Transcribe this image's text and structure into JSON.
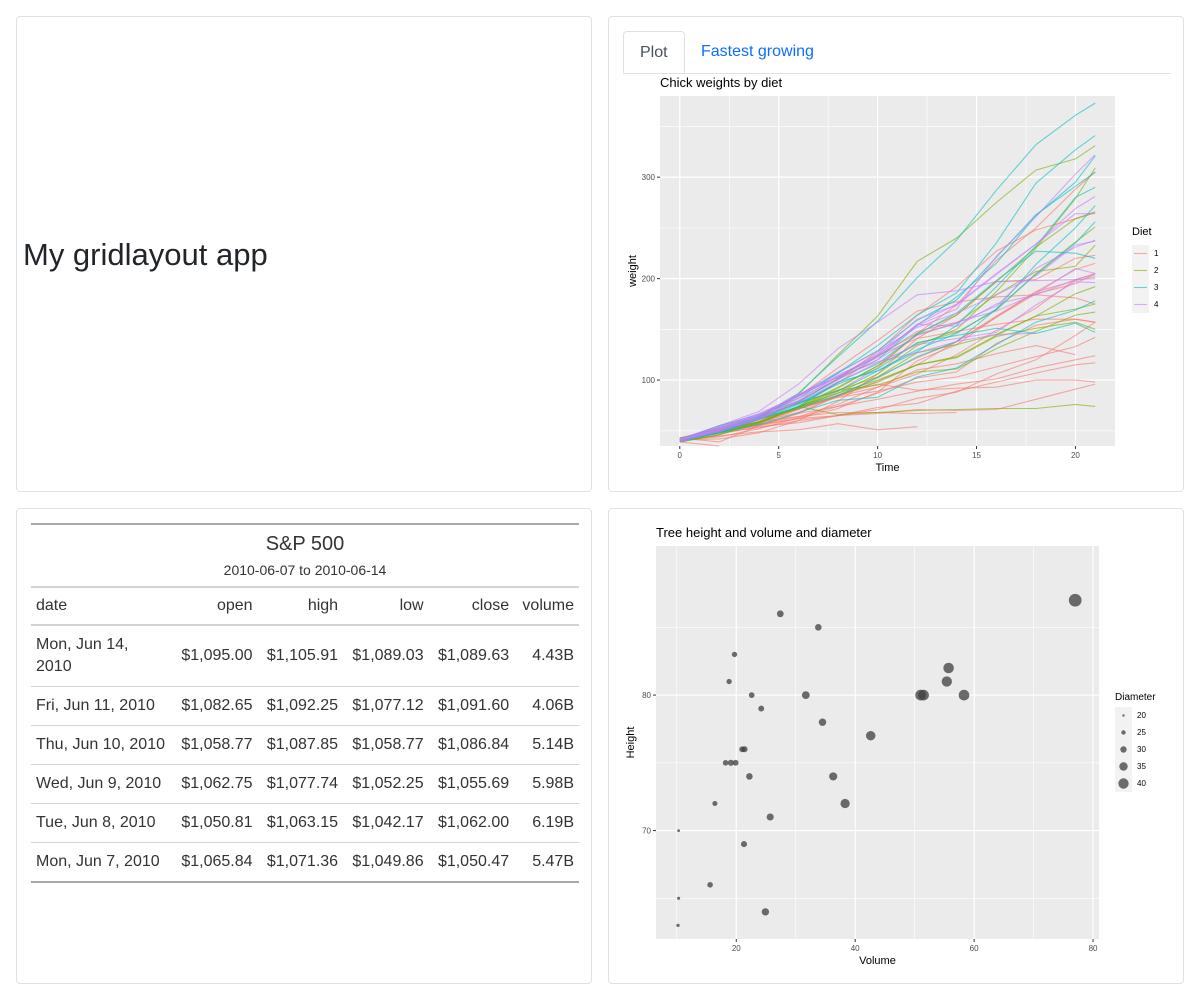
{
  "header": {
    "title": "My gridlayout app"
  },
  "tabs": [
    {
      "label": "Plot",
      "active": true
    },
    {
      "label": "Fastest growing",
      "active": false
    }
  ],
  "chart_data": [
    {
      "type": "line",
      "title": "Chick weights by diet",
      "xlabel": "Time",
      "ylabel": "weight",
      "xlim": [
        -1,
        22
      ],
      "ylim": [
        35,
        380
      ],
      "x_ticks": [
        0,
        5,
        10,
        15,
        20
      ],
      "y_ticks": [
        100,
        200,
        300
      ],
      "grid": true,
      "legend": {
        "title": "Diet",
        "position": "right",
        "entries": [
          "1",
          "2",
          "3",
          "4"
        ]
      },
      "colors": {
        "1": "#F8766D",
        "2": "#7CAE00",
        "3": "#00BFC4",
        "4": "#C77CFF"
      },
      "x": [
        0,
        2,
        4,
        6,
        8,
        10,
        12,
        14,
        16,
        18,
        20,
        21
      ],
      "series": [
        {
          "group": "1",
          "values": [
            42,
            51,
            59,
            64,
            76,
            93,
            106,
            125,
            149,
            171,
            199,
            205
          ]
        },
        {
          "group": "1",
          "values": [
            40,
            49,
            58,
            72,
            84,
            103,
            122,
            138,
            162,
            187,
            209,
            215
          ]
        },
        {
          "group": "1",
          "values": [
            43,
            39,
            55,
            67,
            84,
            99,
            115,
            138,
            163,
            187,
            198,
            202
          ]
        },
        {
          "group": "1",
          "values": [
            42,
            49,
            56,
            67,
            74,
            87,
            102,
            108,
            136,
            154,
            160,
            157
          ]
        },
        {
          "group": "1",
          "values": [
            41,
            42,
            48,
            60,
            79,
            106,
            141,
            164,
            197,
            199,
            220,
            223
          ]
        },
        {
          "group": "1",
          "values": [
            41,
            49,
            59,
            74,
            97,
            124,
            141,
            148,
            155,
            160,
            160,
            157
          ]
        },
        {
          "group": "1",
          "values": [
            41,
            49,
            57,
            71,
            89,
            112,
            146,
            174,
            218,
            250,
            288,
            305
          ]
        },
        {
          "group": "1",
          "values": [
            42,
            50,
            61,
            71,
            84,
            93,
            110,
            116,
            126,
            134,
            125,
            null
          ]
        },
        {
          "group": "1",
          "values": [
            42,
            51,
            59,
            68,
            85,
            96,
            90,
            92,
            93,
            100,
            100,
            98
          ]
        },
        {
          "group": "1",
          "values": [
            41,
            44,
            52,
            63,
            74,
            81,
            89,
            96,
            101,
            112,
            120,
            124
          ]
        },
        {
          "group": "1",
          "values": [
            43,
            51,
            63,
            84,
            112,
            139,
            168,
            177,
            182,
            184,
            181,
            175
          ]
        },
        {
          "group": "1",
          "values": [
            41,
            49,
            56,
            62,
            72,
            88,
            119,
            135,
            162,
            185,
            195,
            205
          ]
        },
        {
          "group": "1",
          "values": [
            41,
            48,
            53,
            60,
            65,
            67,
            71,
            70,
            71,
            81,
            91,
            96
          ]
        },
        {
          "group": "1",
          "values": [
            41,
            49,
            62,
            79,
            101,
            128,
            164,
            192,
            227,
            248,
            259,
            266
          ]
        },
        {
          "group": "1",
          "values": [
            41,
            49,
            56,
            64,
            68,
            68,
            67,
            68,
            null,
            null,
            null,
            null
          ]
        },
        {
          "group": "1",
          "values": [
            41,
            45,
            49,
            51,
            57,
            51,
            54,
            null,
            null,
            null,
            null,
            null
          ]
        },
        {
          "group": "1",
          "values": [
            42,
            51,
            61,
            72,
            83,
            89,
            98,
            103,
            113,
            123,
            133,
            142
          ]
        },
        {
          "group": "1",
          "values": [
            39,
            35,
            null,
            null,
            null,
            null,
            null,
            null,
            null,
            null,
            null,
            null
          ]
        },
        {
          "group": "1",
          "values": [
            43,
            48,
            55,
            62,
            65,
            71,
            82,
            88,
            106,
            120,
            144,
            157
          ]
        },
        {
          "group": "1",
          "values": [
            41,
            47,
            54,
            58,
            65,
            73,
            77,
            89,
            98,
            107,
            115,
            117
          ]
        },
        {
          "group": "2",
          "values": [
            40,
            50,
            62,
            86,
            125,
            163,
            217,
            240,
            275,
            307,
            318,
            331
          ]
        },
        {
          "group": "2",
          "values": [
            41,
            55,
            64,
            77,
            90,
            95,
            108,
            111,
            131,
            148,
            164,
            167
          ]
        },
        {
          "group": "2",
          "values": [
            43,
            52,
            61,
            73,
            90,
            103,
            127,
            135,
            145,
            163,
            170,
            175
          ]
        },
        {
          "group": "2",
          "values": [
            42,
            52,
            58,
            74,
            66,
            68,
            70,
            71,
            72,
            72,
            76,
            74
          ]
        },
        {
          "group": "2",
          "values": [
            40,
            49,
            62,
            78,
            102,
            124,
            146,
            164,
            197,
            231,
            259,
            265
          ]
        },
        {
          "group": "2",
          "values": [
            42,
            48,
            57,
            74,
            93,
            114,
            136,
            147,
            169,
            205,
            236,
            251
          ]
        },
        {
          "group": "2",
          "values": [
            39,
            46,
            58,
            73,
            87,
            100,
            115,
            123,
            144,
            163,
            185,
            192
          ]
        },
        {
          "group": "2",
          "values": [
            39,
            46,
            58,
            73,
            92,
            114,
            145,
            156,
            184,
            207,
            212,
            233
          ]
        },
        {
          "group": "2",
          "values": [
            39,
            48,
            59,
            74,
            87,
            106,
            134,
            150,
            187,
            230,
            279,
            309
          ]
        },
        {
          "group": "2",
          "values": [
            42,
            48,
            59,
            72,
            85,
            98,
            115,
            122,
            143,
            151,
            157,
            150
          ]
        },
        {
          "group": "3",
          "values": [
            42,
            53,
            62,
            73,
            85,
            102,
            123,
            138,
            170,
            204,
            235,
            256
          ]
        },
        {
          "group": "3",
          "values": [
            41,
            49,
            65,
            82,
            107,
            129,
            159,
            179,
            221,
            263,
            291,
            305
          ]
        },
        {
          "group": "3",
          "values": [
            39,
            50,
            63,
            77,
            96,
            111,
            137,
            144,
            151,
            146,
            156,
            147
          ]
        },
        {
          "group": "3",
          "values": [
            41,
            49,
            63,
            85,
            107,
            134,
            164,
            186,
            235,
            294,
            327,
            341
          ]
        },
        {
          "group": "3",
          "values": [
            41,
            53,
            64,
            87,
            123,
            158,
            201,
            238,
            287,
            332,
            361,
            373
          ]
        },
        {
          "group": "3",
          "values": [
            39,
            48,
            61,
            76,
            98,
            116,
            145,
            166,
            198,
            227,
            225,
            220
          ]
        },
        {
          "group": "3",
          "values": [
            41,
            48,
            56,
            68,
            80,
            83,
            103,
            112,
            135,
            157,
            169,
            178
          ]
        },
        {
          "group": "3",
          "values": [
            41,
            49,
            61,
            74,
            98,
            109,
            128,
            154,
            192,
            232,
            280,
            290
          ]
        },
        {
          "group": "3",
          "values": [
            42,
            50,
            61,
            78,
            89,
            109,
            130,
            146,
            170,
            214,
            250,
            272
          ]
        },
        {
          "group": "3",
          "values": [
            41,
            55,
            66,
            79,
            101,
            120,
            154,
            182,
            215,
            262,
            295,
            321
          ]
        },
        {
          "group": "4",
          "values": [
            42,
            51,
            66,
            85,
            103,
            124,
            155,
            153,
            175,
            184,
            199,
            204
          ]
        },
        {
          "group": "4",
          "values": [
            42,
            49,
            63,
            84,
            103,
            126,
            160,
            174,
            204,
            234,
            269,
            281
          ]
        },
        {
          "group": "4",
          "values": [
            42,
            55,
            69,
            96,
            131,
            157,
            184,
            188,
            197,
            198,
            199,
            200
          ]
        },
        {
          "group": "4",
          "values": [
            42,
            51,
            65,
            86,
            103,
            118,
            127,
            138,
            145,
            146,
            null,
            null
          ]
        },
        {
          "group": "4",
          "values": [
            41,
            50,
            61,
            78,
            98,
            117,
            135,
            141,
            147,
            174,
            197,
            196
          ]
        },
        {
          "group": "4",
          "values": [
            40,
            52,
            62,
            82,
            101,
            120,
            144,
            156,
            173,
            210,
            231,
            238
          ]
        },
        {
          "group": "4",
          "values": [
            41,
            53,
            66,
            79,
            100,
            123,
            148,
            157,
            168,
            185,
            210,
            205
          ]
        },
        {
          "group": "4",
          "values": [
            39,
            50,
            62,
            80,
            104,
            125,
            154,
            170,
            222,
            261,
            303,
            322
          ]
        },
        {
          "group": "4",
          "values": [
            40,
            53,
            64,
            85,
            108,
            128,
            152,
            166,
            184,
            203,
            233,
            237
          ]
        },
        {
          "group": "4",
          "values": [
            41,
            54,
            67,
            84,
            105,
            122,
            155,
            175,
            205,
            234,
            264,
            264
          ]
        }
      ]
    },
    {
      "type": "scatter",
      "title": "Tree height and volume and diameter",
      "xlabel": "Volume",
      "ylabel": "Height",
      "xlim": [
        6.5,
        81
      ],
      "ylim": [
        62,
        91
      ],
      "x_ticks": [
        20,
        40,
        60,
        80
      ],
      "y_ticks": [
        70,
        80
      ],
      "grid": true,
      "legend": {
        "title": "Diameter",
        "position": "right",
        "entries": [
          "20",
          "25",
          "30",
          "35",
          "40"
        ]
      },
      "point_color": "#3d3d3d",
      "points": [
        {
          "x": 10.3,
          "y": 70,
          "size": 21.0
        },
        {
          "x": 10.3,
          "y": 65,
          "size": 21.8
        },
        {
          "x": 10.2,
          "y": 63,
          "size": 22.3
        },
        {
          "x": 16.4,
          "y": 72,
          "size": 26.7
        },
        {
          "x": 18.8,
          "y": 81,
          "size": 27.2
        },
        {
          "x": 19.7,
          "y": 83,
          "size": 27.4
        },
        {
          "x": 15.6,
          "y": 66,
          "size": 28.0
        },
        {
          "x": 18.2,
          "y": 75,
          "size": 28.0
        },
        {
          "x": 22.6,
          "y": 80,
          "size": 28.2
        },
        {
          "x": 19.9,
          "y": 75,
          "size": 28.4
        },
        {
          "x": 24.2,
          "y": 79,
          "size": 28.7
        },
        {
          "x": 21.0,
          "y": 76,
          "size": 28.7
        },
        {
          "x": 21.4,
          "y": 76,
          "size": 29.0
        },
        {
          "x": 21.3,
          "y": 69,
          "size": 29.2
        },
        {
          "x": 19.1,
          "y": 75,
          "size": 29.2
        },
        {
          "x": 22.2,
          "y": 74,
          "size": 30.5
        },
        {
          "x": 33.8,
          "y": 85,
          "size": 30.5
        },
        {
          "x": 27.4,
          "y": 86,
          "size": 30.9
        },
        {
          "x": 25.7,
          "y": 71,
          "size": 31.7
        },
        {
          "x": 24.9,
          "y": 64,
          "size": 32.3
        },
        {
          "x": 34.5,
          "y": 78,
          "size": 32.6
        },
        {
          "x": 31.7,
          "y": 80,
          "size": 33.5
        },
        {
          "x": 36.3,
          "y": 74,
          "size": 34.4
        },
        {
          "x": 38.3,
          "y": 72,
          "size": 37.2
        },
        {
          "x": 42.6,
          "y": 77,
          "size": 37.7
        },
        {
          "x": 55.4,
          "y": 81,
          "size": 39.8
        },
        {
          "x": 55.7,
          "y": 82,
          "size": 40.4
        },
        {
          "x": 58.3,
          "y": 80,
          "size": 40.6
        },
        {
          "x": 51.5,
          "y": 80,
          "size": 40.6
        },
        {
          "x": 51.0,
          "y": 80,
          "size": 40.6
        },
        {
          "x": 77.0,
          "y": 87,
          "size": 45.8
        }
      ]
    }
  ],
  "table": {
    "title": "S&P 500",
    "subtitle": "2010-06-07 to 2010-06-14",
    "columns": [
      "date",
      "open",
      "high",
      "low",
      "close",
      "volume"
    ],
    "rows": [
      [
        "Mon, Jun 14, 2010",
        "$1,095.00",
        "$1,105.91",
        "$1,089.03",
        "$1,089.63",
        "4.43B"
      ],
      [
        "Fri, Jun 11, 2010",
        "$1,082.65",
        "$1,092.25",
        "$1,077.12",
        "$1,091.60",
        "4.06B"
      ],
      [
        "Thu, Jun 10, 2010",
        "$1,058.77",
        "$1,087.85",
        "$1,058.77",
        "$1,086.84",
        "5.14B"
      ],
      [
        "Wed, Jun 9, 2010",
        "$1,062.75",
        "$1,077.74",
        "$1,052.25",
        "$1,055.69",
        "5.98B"
      ],
      [
        "Tue, Jun 8, 2010",
        "$1,050.81",
        "$1,063.15",
        "$1,042.17",
        "$1,062.00",
        "6.19B"
      ],
      [
        "Mon, Jun 7, 2010",
        "$1,065.84",
        "$1,071.36",
        "$1,049.86",
        "$1,050.47",
        "5.47B"
      ]
    ]
  }
}
